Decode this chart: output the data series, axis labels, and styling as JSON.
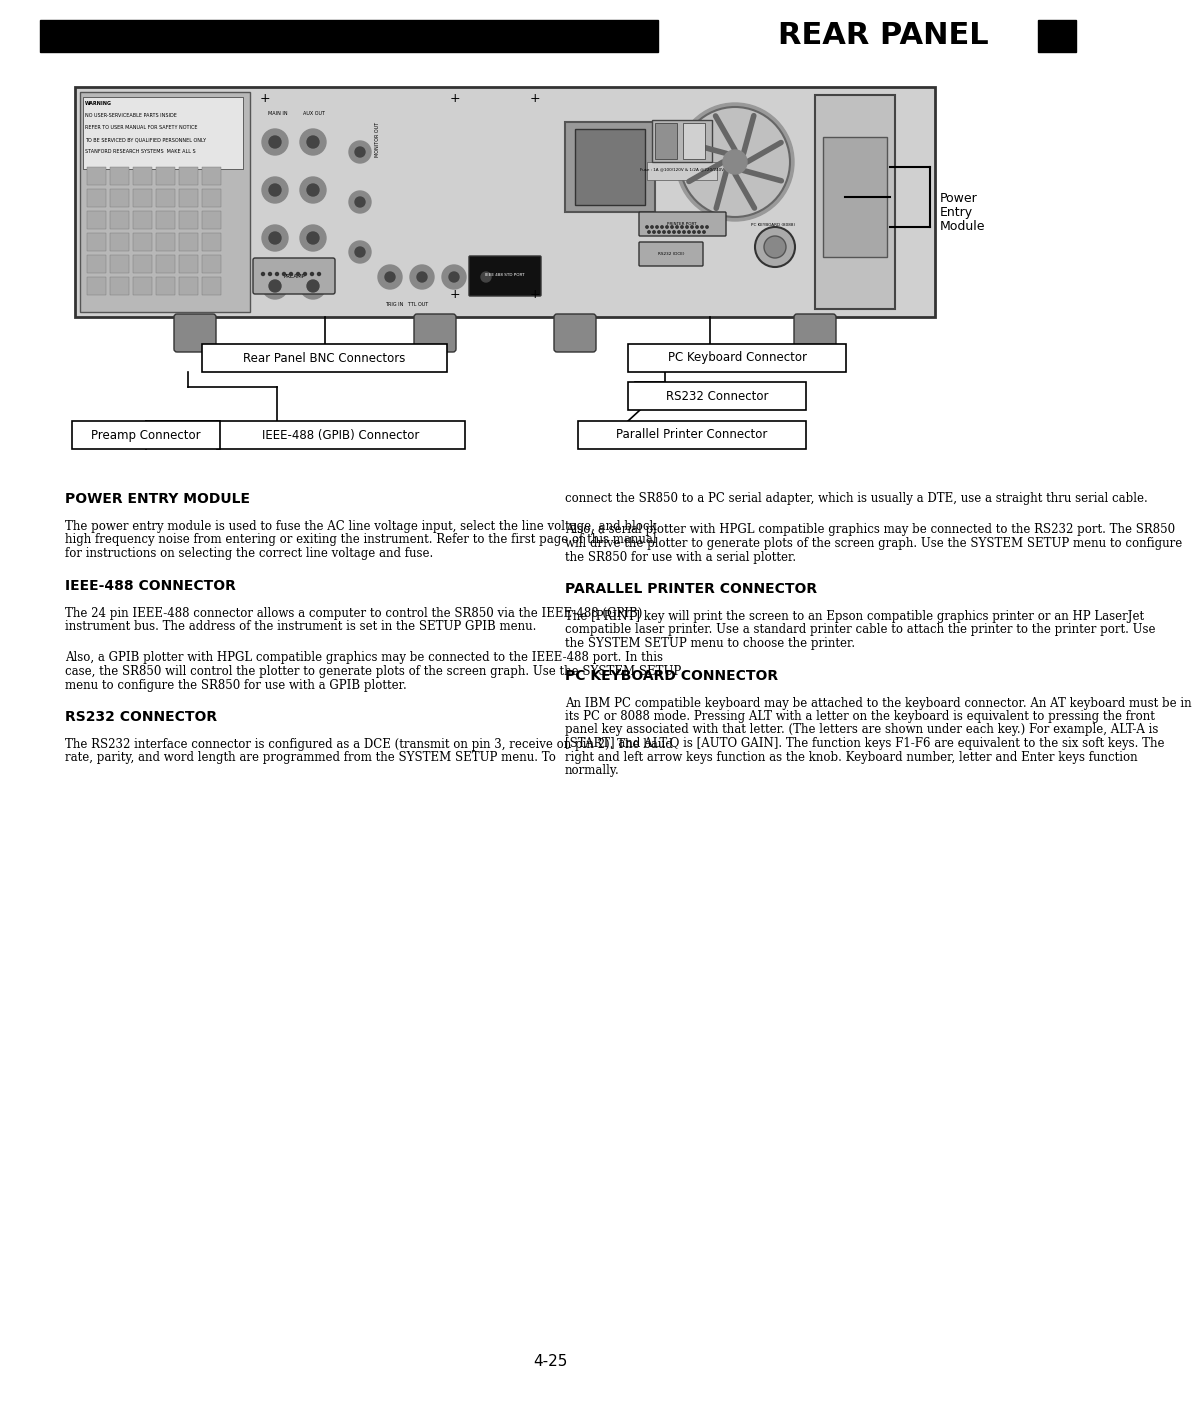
{
  "page_bg": "#ffffff",
  "page_number": "4-25",
  "section_titles": {
    "power_entry": "POWER ENTRY MODULE",
    "ieee488": "IEEE-488 CONNECTOR",
    "rs232": "RS232 CONNECTOR",
    "parallel_printer": "PARALLEL PRINTER CONNECTOR",
    "pc_keyboard": "PC KEYBOARD CONNECTOR"
  },
  "power_entry_text": "The power entry module is used to fuse the AC line voltage input, select the line voltage, and block high frequency noise from entering or exiting the instrument. Refer to the first page of this manual for instructions on selecting the correct line voltage and fuse.",
  "ieee488_text1": "The 24 pin IEEE-488 connector allows a computer to control the SR850 via the IEEE-488 (GPIB) instrument bus. The address of the instrument is set in the SETUP GPIB menu.",
  "ieee488_text2": "Also, a GPIB plotter with HPGL compatible graphics may be connected to the IEEE-488 port. In this case, the SR850 will control the plotter to generate plots of the screen graph. Use the SYSTEM SETUP menu to configure the SR850 for use with a GPIB plotter.",
  "rs232_text1": "The RS232 interface connector is configured as a DCE (transmit on pin 3, receive on pin 2). The baud rate, parity, and word length are programmed from the SYSTEM SETUP menu. To",
  "rs232_text2": "connect the SR850 to a PC serial adapter, which is usually a DTE, use a straight thru serial cable.",
  "rs232_text3": "Also, a serial plotter with HPGL compatible graphics may be connected to the RS232 port. The SR850 will drive the plotter to generate plots of the screen graph. Use the SYSTEM SETUP menu to configure the SR850 for use with a serial plotter.",
  "parallel_text": "The [PRINT] key will print the screen to an Epson compatible graphics printer or an HP LaserJet compatible laser printer. Use a standard printer cable to attach the printer to the printer port. Use the SYSTEM SETUP menu to choose the printer.",
  "pc_keyboard_text": "An IBM PC compatible keyboard may be attached to the keyboard connector. An AT keyboard must be in its PC or 8088 mode. Pressing ALT with a letter on the keyboard is equivalent to pressing the front panel key associated with that letter. (The letters are shown under each key.) For example, ALT-A is [START] and ALT-Q is [AUTO GAIN]. The function keys F1-F6 are equivalent to the six soft keys. The right and left arrow keys function as the knob. Keyboard number, letter and Enter keys function normally.",
  "diagram_labels": {
    "power_entry_line1": "Power",
    "power_entry_line2": "Entry",
    "power_entry_line3": "Module",
    "pc_keyboard": "PC Keyboard Connector",
    "rs232": "RS232 Connector",
    "parallel_printer": "Parallel Printer Connector",
    "rear_panel_bnc": "Rear Panel BNC Connectors",
    "preamp": "Preamp Connector",
    "ieee488": "IEEE-488 (GPIB) Connector"
  },
  "warning_lines": [
    "WARNING",
    "NO USER-SERVICEABLE PARTS INSIDE",
    "REFER TO USER MANUAL FOR SAFETY NOTICE",
    "TO BE SERVICED BY QUALIFIED PERSONNEL ONLY",
    "STANFORD RESEARCH SYSTEMS  MAKE ALL S"
  ]
}
